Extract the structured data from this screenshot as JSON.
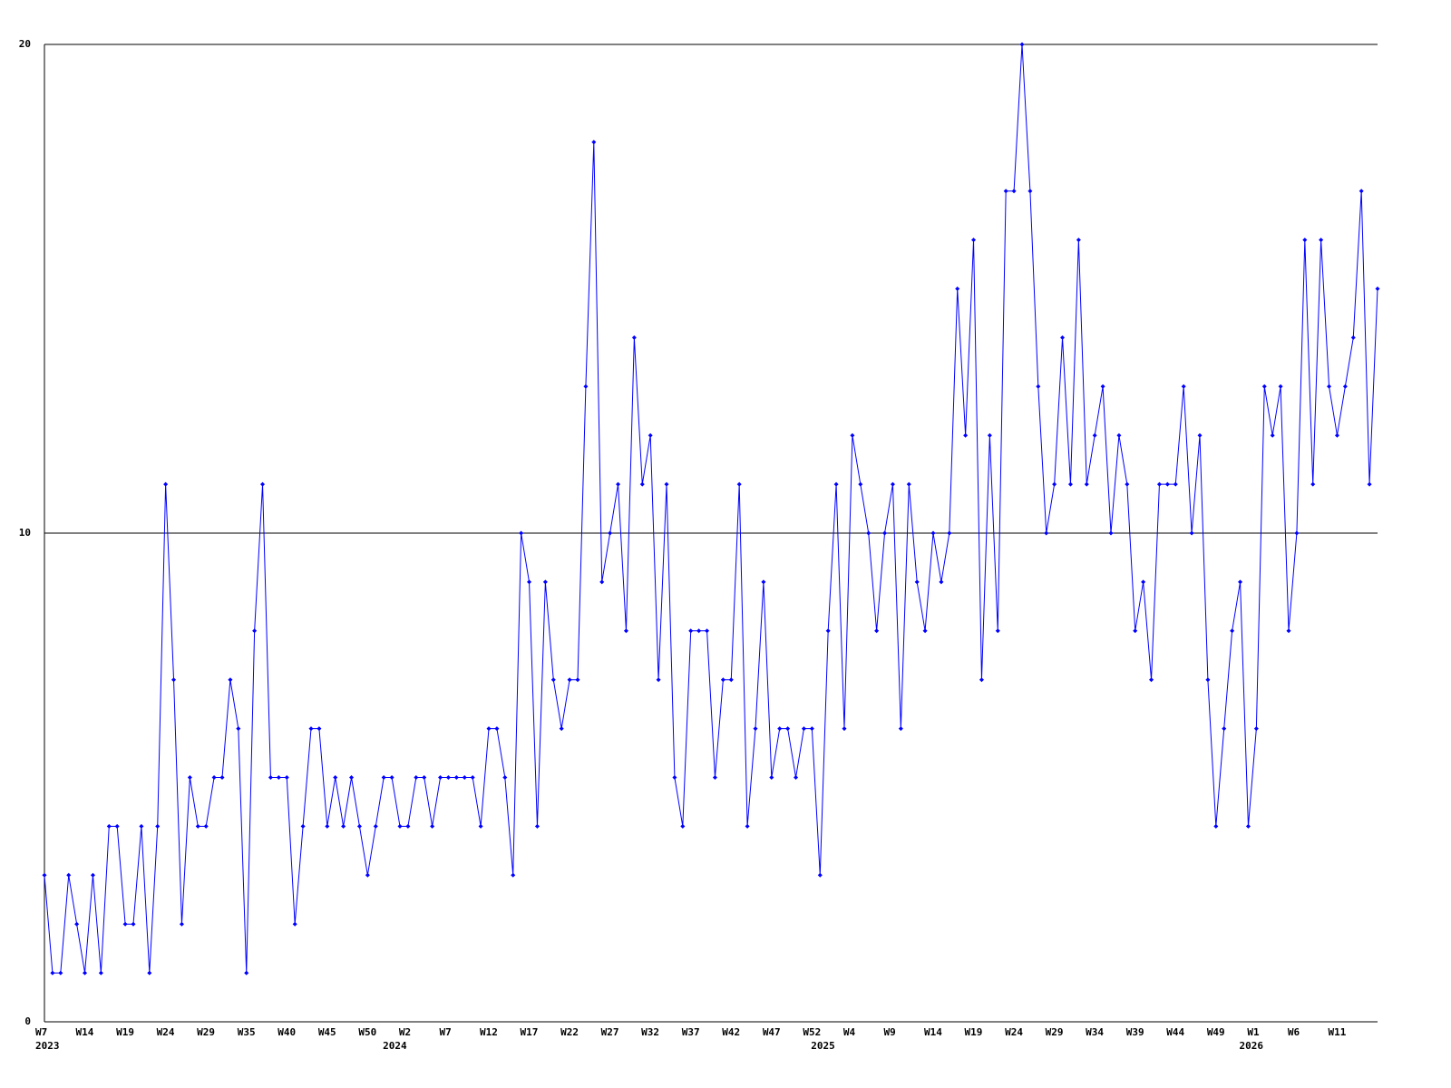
{
  "chart_data": {
    "type": "line",
    "color": "#0000ff",
    "values": [
      3,
      1,
      1,
      3,
      2,
      1,
      3,
      1,
      4,
      4,
      2,
      2,
      4,
      1,
      4,
      11,
      7,
      2,
      5,
      4,
      4,
      5,
      5,
      7,
      6,
      1,
      8,
      11,
      5,
      5,
      5,
      2,
      4,
      6,
      6,
      4,
      5,
      4,
      5,
      4,
      3,
      4,
      5,
      5,
      4,
      4,
      5,
      5,
      4,
      5,
      5,
      5,
      5,
      5,
      4,
      6,
      6,
      5,
      3,
      10,
      9,
      4,
      9,
      7,
      6,
      7,
      7,
      13,
      18,
      9,
      10,
      11,
      8,
      14,
      11,
      12,
      7,
      11,
      5,
      4,
      8,
      8,
      8,
      5,
      7,
      7,
      11,
      4,
      6,
      9,
      5,
      6,
      6,
      5,
      6,
      6,
      3,
      8,
      11,
      6,
      12,
      11,
      10,
      8,
      10,
      11,
      6,
      11,
      9,
      8,
      10,
      9,
      10,
      15,
      12,
      16,
      7,
      12,
      8,
      17,
      17,
      20,
      17,
      13,
      10,
      11,
      14,
      11,
      16,
      11,
      12,
      13,
      10,
      12,
      11,
      8,
      9,
      7,
      11,
      11,
      11,
      13,
      10,
      12,
      7,
      4,
      6,
      8,
      9,
      4,
      6,
      13,
      12,
      13,
      8,
      10,
      16,
      11,
      16,
      13,
      12,
      13,
      14,
      17,
      11,
      15
    ],
    "categories": [
      "W7",
      null,
      null,
      null,
      null,
      "W14",
      null,
      null,
      null,
      null,
      "W19",
      null,
      null,
      null,
      null,
      "W24",
      null,
      null,
      null,
      null,
      "W29",
      null,
      null,
      null,
      null,
      "W35",
      null,
      null,
      null,
      null,
      "W40",
      null,
      null,
      null,
      null,
      "W45",
      null,
      null,
      null,
      null,
      "W50",
      null,
      null,
      null,
      null,
      "W2",
      null,
      null,
      null,
      null,
      "W7",
      null,
      null,
      null,
      null,
      "W12",
      null,
      null,
      null,
      null,
      "W17",
      null,
      null,
      null,
      null,
      "W22",
      null,
      null,
      null,
      null,
      "W27",
      null,
      null,
      null,
      null,
      "W32",
      null,
      null,
      null,
      null,
      "W37",
      null,
      null,
      null,
      null,
      "W42",
      null,
      null,
      null,
      null,
      "W47",
      null,
      null,
      null,
      null,
      "W52",
      null,
      null,
      null,
      null,
      "W4",
      null,
      null,
      null,
      null,
      "W9",
      null,
      null,
      null,
      null,
      "W14",
      null,
      null,
      null,
      null,
      "W19",
      null,
      null,
      null,
      null,
      "W24",
      null,
      null,
      null,
      null,
      "W29",
      null,
      null,
      null,
      null,
      "W34",
      null,
      null,
      null,
      null,
      "W39",
      null,
      null,
      null,
      null,
      "W44",
      null,
      null,
      null,
      null,
      "W49",
      null,
      null,
      null,
      null,
      "W1",
      null,
      null,
      null,
      null,
      "W6",
      null,
      null,
      null,
      null,
      "W11",
      null,
      null,
      null,
      null,
      null
    ],
    "years": [
      "2023",
      null,
      null,
      null,
      null,
      null,
      null,
      null,
      null,
      null,
      null,
      null,
      null,
      null,
      null,
      null,
      null,
      null,
      null,
      null,
      null,
      null,
      null,
      null,
      null,
      null,
      null,
      null,
      null,
      null,
      null,
      null,
      null,
      null,
      null,
      null,
      null,
      null,
      null,
      null,
      null,
      null,
      null,
      "2024",
      null,
      null,
      null,
      null,
      null,
      null,
      null,
      null,
      null,
      null,
      null,
      null,
      null,
      null,
      null,
      null,
      null,
      null,
      null,
      null,
      null,
      null,
      null,
      null,
      null,
      null,
      null,
      null,
      null,
      null,
      null,
      null,
      null,
      null,
      null,
      null,
      null,
      null,
      null,
      null,
      null,
      null,
      null,
      null,
      null,
      null,
      null,
      null,
      null,
      null,
      null,
      null,
      "2025",
      null,
      null,
      null,
      null,
      null,
      null,
      null,
      null,
      null,
      null,
      null,
      null,
      null,
      null,
      null,
      null,
      null,
      null,
      null,
      null,
      null,
      null,
      null,
      null,
      null,
      null,
      null,
      null,
      null,
      null,
      null,
      null,
      null,
      null,
      null,
      null,
      null,
      null,
      null,
      null,
      null,
      null,
      null,
      null,
      null,
      null,
      null,
      null,
      null,
      null,
      null,
      null,
      "2026",
      null,
      null,
      null,
      null,
      null,
      null,
      null,
      null,
      null,
      null,
      null,
      null,
      null,
      null,
      null,
      null
    ],
    "ylim": [
      0,
      20
    ],
    "yticks": [
      0,
      10,
      20
    ],
    "grid": true
  }
}
